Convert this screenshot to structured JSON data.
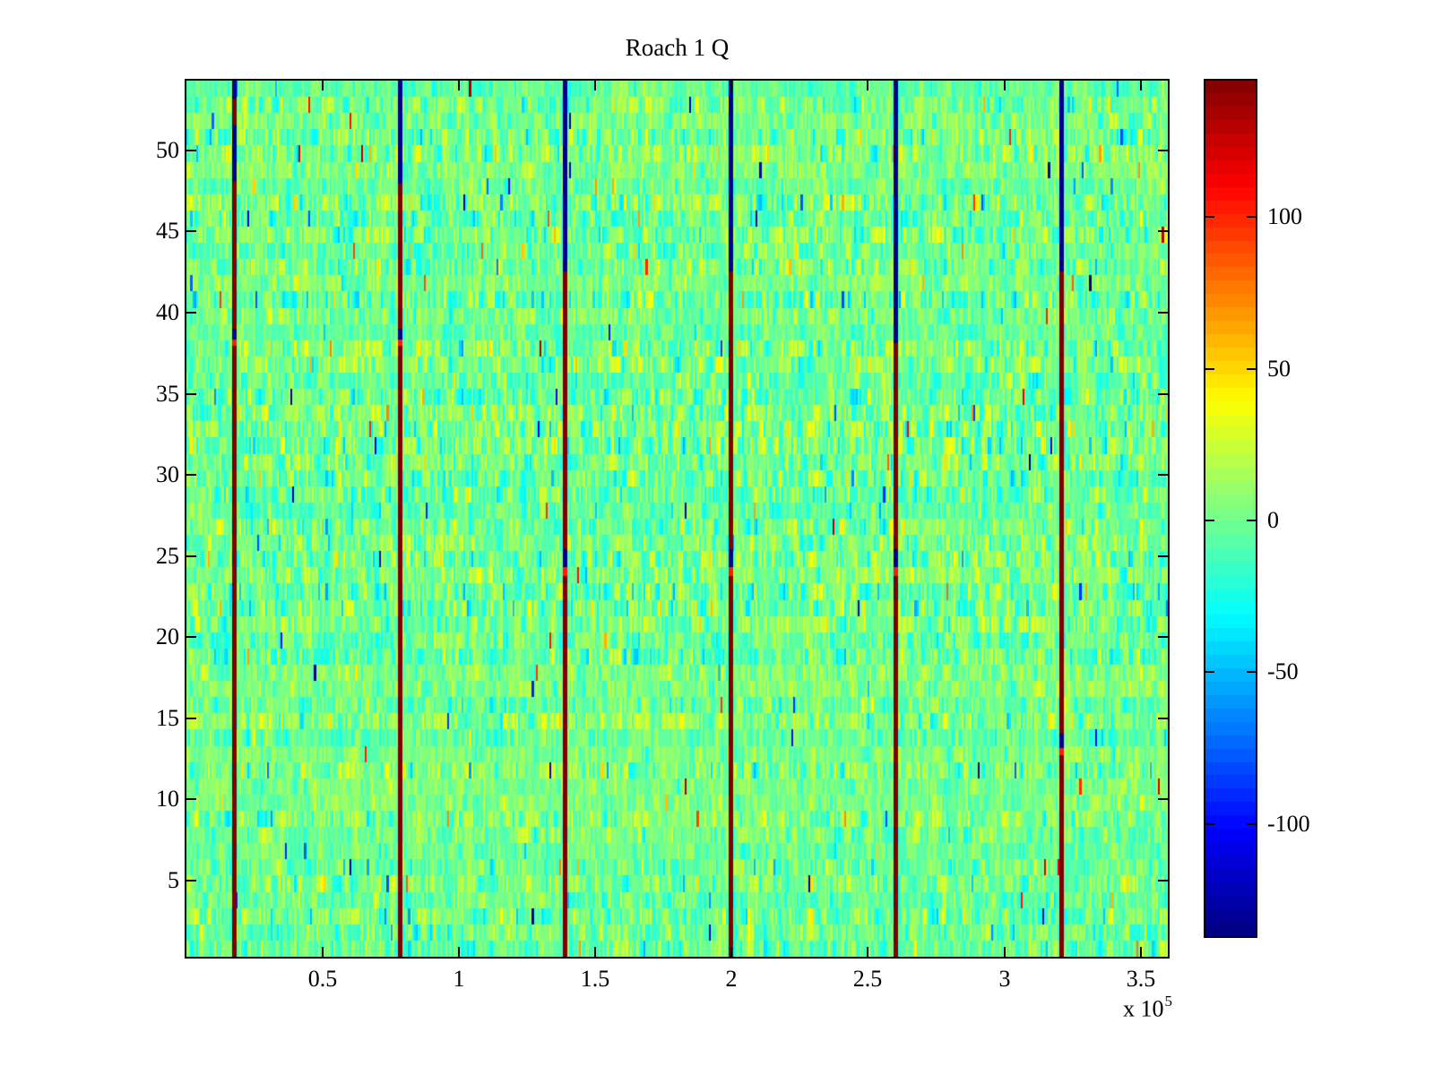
{
  "chart_data": {
    "type": "heatmap",
    "title": "Roach 1 Q",
    "colormap": "jet",
    "x_axis": {
      "range": [
        0,
        3.6
      ],
      "scale": 100000,
      "exponent_prefix": "x 10",
      "exponent": "5",
      "ticks": [
        {
          "value": 0.5,
          "label": "0.5"
        },
        {
          "value": 1.0,
          "label": "1"
        },
        {
          "value": 1.5,
          "label": "1.5"
        },
        {
          "value": 2.0,
          "label": "2"
        },
        {
          "value": 2.5,
          "label": "2.5"
        },
        {
          "value": 3.0,
          "label": "3"
        },
        {
          "value": 3.5,
          "label": "3.5"
        }
      ]
    },
    "y_axis": {
      "range": [
        0.3,
        54.3
      ],
      "ticks": [
        {
          "value": 5,
          "label": "5"
        },
        {
          "value": 10,
          "label": "10"
        },
        {
          "value": 15,
          "label": "15"
        },
        {
          "value": 20,
          "label": "20"
        },
        {
          "value": 25,
          "label": "25"
        },
        {
          "value": 30,
          "label": "30"
        },
        {
          "value": 35,
          "label": "35"
        },
        {
          "value": 40,
          "label": "40"
        },
        {
          "value": 45,
          "label": "45"
        },
        {
          "value": 50,
          "label": "50"
        }
      ]
    },
    "colorbar": {
      "cmin": -137,
      "cmax": 145,
      "bands": 64,
      "ticks": [
        {
          "value": 100,
          "label": "100"
        },
        {
          "value": 50,
          "label": "50"
        },
        {
          "value": 0,
          "label": "0"
        },
        {
          "value": -50,
          "label": "-50"
        },
        {
          "value": -100,
          "label": "-100"
        }
      ]
    },
    "grid": {
      "rows": 54,
      "cols": 500
    },
    "noise": {
      "mean": 0,
      "std": 13,
      "outlier_prob": 0.008,
      "row_corr": 0.3,
      "seed": 7
    },
    "marker_lines": [
      {
        "x": 0.174,
        "segments": [
          [
            0,
            0.02,
            "b"
          ],
          [
            0.02,
            0.051,
            "r"
          ],
          [
            0.051,
            0.115,
            "b"
          ],
          [
            0.115,
            0.283,
            "r"
          ],
          [
            0.283,
            0.296,
            "b"
          ],
          [
            0.296,
            0.303,
            "R"
          ],
          [
            0.303,
            1,
            "r"
          ]
        ]
      },
      {
        "x": 0.781,
        "segments": [
          [
            0,
            0.118,
            "b"
          ],
          [
            0.118,
            0.283,
            "r"
          ],
          [
            0.283,
            0.296,
            "b"
          ],
          [
            0.296,
            0.303,
            "R"
          ],
          [
            0.303,
            1,
            "r"
          ]
        ]
      },
      {
        "x": 1.388,
        "segments": [
          [
            0,
            0.218,
            "b"
          ],
          [
            0.218,
            0.535,
            "r"
          ],
          [
            0.535,
            0.555,
            "b"
          ],
          [
            0.555,
            0.565,
            "R"
          ],
          [
            0.565,
            1,
            "r"
          ]
        ]
      },
      {
        "x": 1.995,
        "segments": [
          [
            0,
            0.218,
            "b"
          ],
          [
            0.218,
            0.535,
            "r"
          ],
          [
            0.535,
            0.555,
            "b"
          ],
          [
            0.555,
            0.565,
            "R"
          ],
          [
            0.565,
            1,
            "r"
          ]
        ]
      },
      {
        "x": 2.602,
        "segments": [
          [
            0,
            0.3,
            "b"
          ],
          [
            0.3,
            0.535,
            "r"
          ],
          [
            0.535,
            0.555,
            "b"
          ],
          [
            0.555,
            0.565,
            "R"
          ],
          [
            0.565,
            1,
            "r"
          ]
        ]
      },
      {
        "x": 3.209,
        "segments": [
          [
            0,
            0.218,
            "b"
          ],
          [
            0.218,
            0.745,
            "r"
          ],
          [
            0.745,
            0.762,
            "b"
          ],
          [
            0.762,
            0.77,
            "R"
          ],
          [
            0.77,
            1,
            "r"
          ]
        ]
      }
    ],
    "colors": {
      "background": "#ffffff",
      "axis": "#000000",
      "line_dark_blue": "#00008C",
      "line_dark_red": "#7E0000",
      "line_bright_red": "#FF1A00"
    }
  }
}
